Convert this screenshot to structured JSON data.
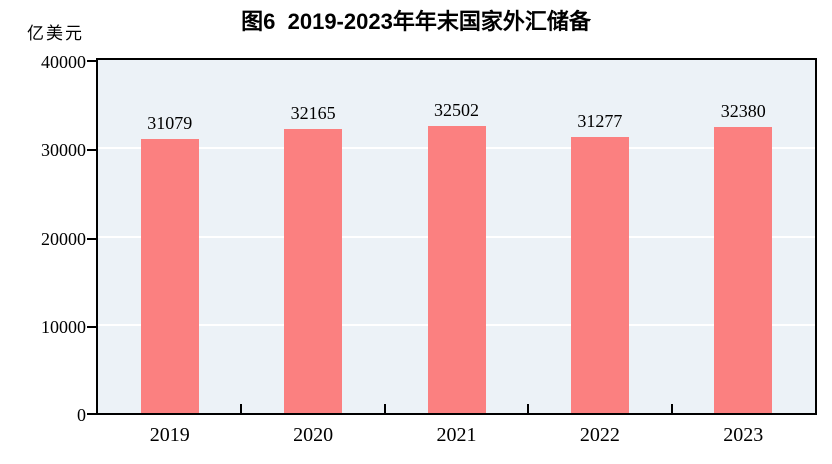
{
  "header": {
    "title": "图6  2019-2023年年末国家外汇储备",
    "unit_label": "亿美元"
  },
  "chart_data": {
    "type": "bar",
    "title": "图6 2019-2023年年末国家外汇储备",
    "ylabel": "亿美元",
    "xlabel": "",
    "categories": [
      "2019",
      "2020",
      "2021",
      "2022",
      "2023"
    ],
    "values": [
      31079,
      32165,
      32502,
      31277,
      32380
    ],
    "ylim": [
      0,
      40000
    ],
    "yticks": [
      0,
      10000,
      20000,
      30000,
      40000
    ],
    "ytick_labels": [
      "0",
      "10000",
      "20000",
      "30000",
      "40000"
    ],
    "grid": true,
    "legend": "none",
    "colors": {
      "bar": "#FB8080",
      "plot_background": "#ECF2F7",
      "gridline": "#FFFFFF",
      "axis": "#000000",
      "text": "#000000"
    }
  }
}
